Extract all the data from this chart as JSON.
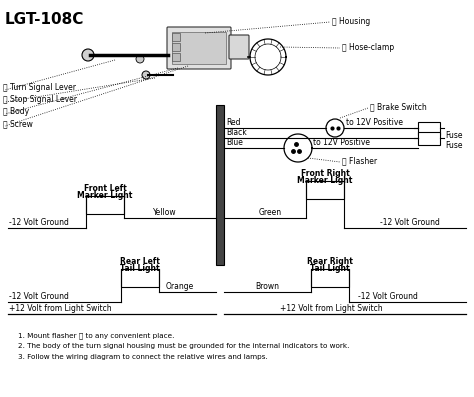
{
  "title": "LGT-108C",
  "bg_color": "#ffffff",
  "labels": {
    "A": "Housing",
    "B": "Hose-clamp",
    "C": "Flasher",
    "E": "Turn Signal Lever",
    "F": "Stop Signal Lever",
    "G": "Body",
    "H": "Screw",
    "J": "Brake Switch"
  },
  "component_labels": {
    "front_left": [
      "Front Left",
      "Marker Light"
    ],
    "front_right": [
      "Front Right",
      "Marker Light"
    ],
    "rear_left": [
      "Rear Left",
      "Tail Light"
    ],
    "rear_right": [
      "Rear Right",
      "Tail Light"
    ],
    "to_12v_pos1": "to 12V Positive",
    "to_12v_pos2": "to 12V Positive",
    "neg12_fl": "-12 Volt Ground",
    "neg12_fr": "-12 Volt Ground",
    "neg12_rl": "-12 Volt Ground",
    "neg12_rr": "-12 Volt Ground",
    "pos12_l": "+12 Volt from Light Switch",
    "pos12_r": "+12 Volt from Light Switch"
  },
  "wire_names": [
    "Red",
    "Black",
    "Blue",
    "Yellow",
    "Green",
    "Orange",
    "Brown"
  ],
  "fuse_label": "Fuse",
  "notes": [
    "1. Mount flasher Ⓒ to any convenient place.",
    "2. The body of the turn signal housing must be grounded for the internal indicators to work.",
    "3. Follow the wiring diagram to connect the relative wires and lamps."
  ]
}
